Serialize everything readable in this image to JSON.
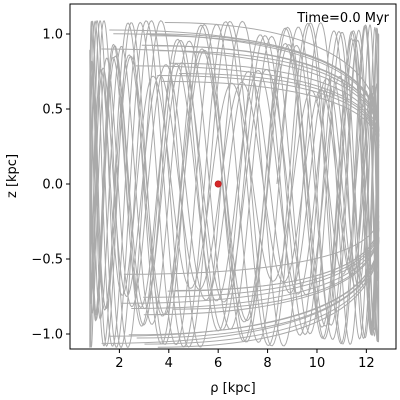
{
  "chart_data": {
    "type": "line",
    "annotation": "Time=0.0 Myr",
    "xlabel": "ρ [kpc]",
    "ylabel": "z [kpc]",
    "xlim": [
      0.0,
      13.2
    ],
    "ylim": [
      -1.1,
      1.2
    ],
    "xticks": [
      2,
      4,
      6,
      8,
      10,
      12
    ],
    "xtick_labels": [
      "2",
      "4",
      "6",
      "8",
      "10",
      "12"
    ],
    "yticks": [
      -1.0,
      -0.5,
      0.0,
      0.5,
      1.0
    ],
    "ytick_labels": [
      "−1.0",
      "−0.5",
      "0.0",
      "0.5",
      "1.0"
    ],
    "grid": false,
    "series": [
      {
        "role": "orbit-trajectory",
        "color": "#aaaaaa",
        "rho_range": [
          0.8,
          12.5
        ],
        "z_range": [
          -0.98,
          1.09
        ]
      }
    ],
    "marker": {
      "role": "current-position",
      "rho": 6.0,
      "z": 0.0,
      "color": "#d62728"
    }
  }
}
